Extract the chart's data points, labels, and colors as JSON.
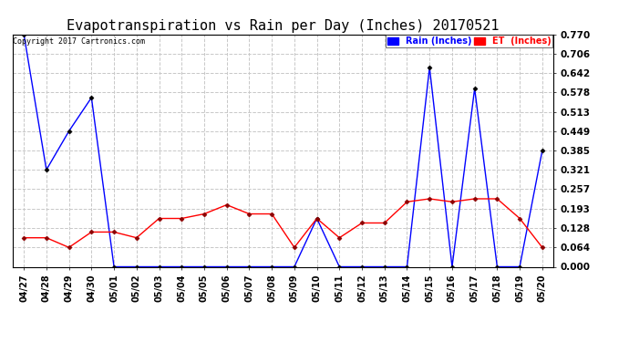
{
  "title": "Evapotranspiration vs Rain per Day (Inches) 20170521",
  "copyright": "Copyright 2017 Cartronics.com",
  "x_labels": [
    "04/27",
    "04/28",
    "04/29",
    "04/30",
    "05/01",
    "05/02",
    "05/03",
    "05/04",
    "05/05",
    "05/06",
    "05/07",
    "05/08",
    "05/09",
    "05/10",
    "05/11",
    "05/12",
    "05/13",
    "05/14",
    "05/15",
    "05/16",
    "05/17",
    "05/18",
    "05/19",
    "05/20"
  ],
  "rain_values": [
    0.77,
    0.321,
    0.449,
    0.56,
    0.0,
    0.0,
    0.0,
    0.0,
    0.0,
    0.0,
    0.0,
    0.0,
    0.0,
    0.16,
    0.0,
    0.0,
    0.0,
    0.0,
    0.66,
    0.0,
    0.59,
    0.0,
    0.0,
    0.385
  ],
  "et_values": [
    0.096,
    0.096,
    0.064,
    0.115,
    0.115,
    0.096,
    0.16,
    0.16,
    0.175,
    0.205,
    0.175,
    0.175,
    0.064,
    0.16,
    0.096,
    0.145,
    0.145,
    0.215,
    0.225,
    0.215,
    0.225,
    0.225,
    0.16,
    0.064
  ],
  "rain_color": "#0000ff",
  "et_color": "#ff0000",
  "background_color": "#ffffff",
  "grid_color": "#c8c8c8",
  "y_ticks": [
    0.0,
    0.064,
    0.128,
    0.193,
    0.257,
    0.321,
    0.385,
    0.449,
    0.513,
    0.578,
    0.642,
    0.706,
    0.77
  ],
  "ylim": [
    0.0,
    0.77
  ],
  "title_fontsize": 11,
  "legend_rain_label": "Rain (Inches)",
  "legend_et_label": "ET  (Inches)"
}
